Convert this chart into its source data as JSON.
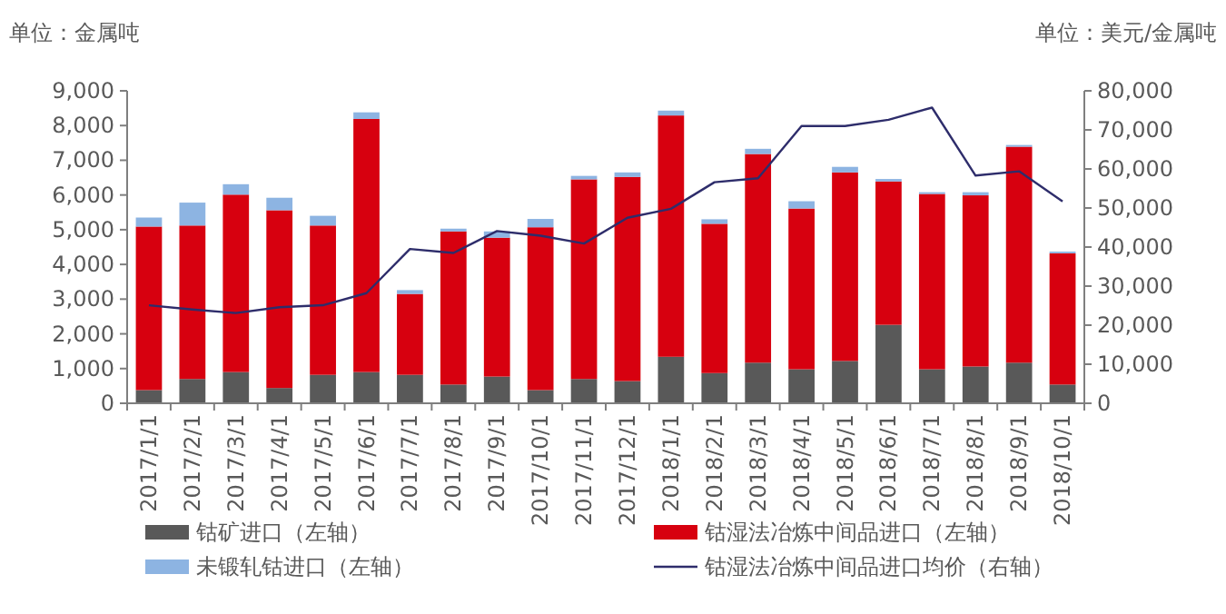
{
  "chart_data": {
    "type": "bar",
    "stacked": true,
    "ylabel": "单位：金属吨",
    "y2label": "单位：美元/金属吨",
    "categories": [
      "2017/1/1",
      "2017/2/1",
      "2017/3/1",
      "2017/4/1",
      "2017/5/1",
      "2017/6/1",
      "2017/7/1",
      "2017/8/1",
      "2017/9/1",
      "2017/10/1",
      "2017/11/1",
      "2017/12/1",
      "2018/1/1",
      "2018/2/1",
      "2018/3/1",
      "2018/4/1",
      "2018/5/1",
      "2018/6/1",
      "2018/7/1",
      "2018/8/1",
      "2018/9/1",
      "2018/10/1"
    ],
    "series": [
      {
        "name": "钴矿进口（左轴）",
        "color": "#595959",
        "values": [
          380,
          700,
          900,
          440,
          820,
          900,
          820,
          540,
          770,
          380,
          700,
          640,
          1340,
          870,
          1170,
          980,
          1220,
          2260,
          980,
          1060,
          1170,
          540
        ]
      },
      {
        "name": "钴湿法冶炼中间品进口（左轴）",
        "color": "#d7000f",
        "values": [
          4710,
          4420,
          5110,
          5120,
          4300,
          7290,
          2330,
          4410,
          4000,
          4690,
          5750,
          5880,
          6950,
          4300,
          6010,
          4630,
          5430,
          4130,
          5050,
          4930,
          6220,
          3780
        ]
      },
      {
        "name": "未锻轧钴进口（左轴）",
        "color": "#8db4e2",
        "values": [
          260,
          660,
          300,
          360,
          280,
          190,
          110,
          80,
          180,
          240,
          100,
          130,
          140,
          130,
          150,
          210,
          160,
          70,
          50,
          90,
          50,
          50
        ]
      },
      {
        "name": "钴湿法冶炼中间品进口均价（右轴）",
        "type": "line",
        "axis": "y2",
        "color": "#2e2d6b",
        "values": [
          25100,
          24000,
          23100,
          24600,
          25100,
          28200,
          39500,
          38500,
          44100,
          42900,
          40900,
          47500,
          49800,
          56600,
          57600,
          71000,
          71000,
          72600,
          75700,
          58300,
          59400,
          51700
        ]
      }
    ],
    "ylim": [
      0,
      9000
    ],
    "yticks": [
      {
        "value": 0,
        "label": "0"
      },
      {
        "value": 1000,
        "label": "1,000"
      },
      {
        "value": 2000,
        "label": "2,000"
      },
      {
        "value": 3000,
        "label": "3,000"
      },
      {
        "value": 4000,
        "label": "4,000"
      },
      {
        "value": 5000,
        "label": "5,000"
      },
      {
        "value": 6000,
        "label": "6,000"
      },
      {
        "value": 7000,
        "label": "7,000"
      },
      {
        "value": 8000,
        "label": "8,000"
      },
      {
        "value": 9000,
        "label": "9,000"
      }
    ],
    "y2lim": [
      0,
      80000
    ],
    "y2ticks": [
      {
        "value": 0,
        "label": "0"
      },
      {
        "value": 10000,
        "label": "10,000"
      },
      {
        "value": 20000,
        "label": "20,000"
      },
      {
        "value": 30000,
        "label": "30,000"
      },
      {
        "value": 40000,
        "label": "40,000"
      },
      {
        "value": 50000,
        "label": "50,000"
      },
      {
        "value": 60000,
        "label": "60,000"
      },
      {
        "value": 70000,
        "label": "70,000"
      },
      {
        "value": 80000,
        "label": "80,000"
      }
    ],
    "legend": "bottom",
    "grid": false
  }
}
